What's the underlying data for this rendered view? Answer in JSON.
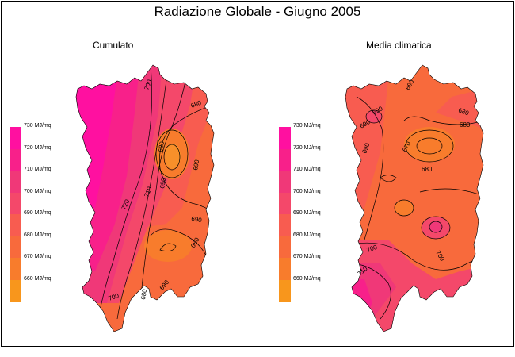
{
  "title": "Radiazione Globale - Giugno 2005",
  "panels": [
    {
      "title": "Cumulato"
    },
    {
      "title": "Media climatica"
    }
  ],
  "legend": {
    "items": [
      {
        "label": "730 MJ/mq",
        "value": 730,
        "color": "#ff10a0"
      },
      {
        "label": "720 MJ/mq",
        "value": 720,
        "color": "#f8208a"
      },
      {
        "label": "710 MJ/mq",
        "value": 710,
        "color": "#f03878"
      },
      {
        "label": "700 MJ/mq",
        "value": 700,
        "color": "#f4486a"
      },
      {
        "label": "690 MJ/mq",
        "value": 690,
        "color": "#f85c50"
      },
      {
        "label": "680 MJ/mq",
        "value": 680,
        "color": "#f86a3c"
      },
      {
        "label": "670 MJ/mq",
        "value": 670,
        "color": "#f87c2c"
      },
      {
        "label": "660 MJ/mq",
        "value": 660,
        "color": "#f8961c"
      }
    ]
  },
  "contours_left": [
    "700",
    "680",
    "690",
    "690",
    "710",
    "720",
    "690",
    "680",
    "680",
    "700",
    "690",
    "680"
  ],
  "contours_right": [
    "690",
    "690",
    "680",
    "690",
    "670",
    "690",
    "680",
    "680",
    "700",
    "700",
    "710"
  ],
  "colors": {
    "zone_730": "#ff10a0",
    "zone_720": "#f8208a",
    "zone_710": "#f03878",
    "zone_700": "#f4486a",
    "zone_690": "#f85c50",
    "zone_680": "#f86a3c",
    "zone_670": "#f87c2c"
  }
}
